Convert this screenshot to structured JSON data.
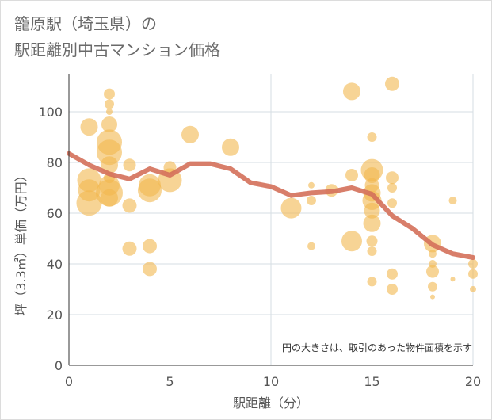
{
  "chart_data": {
    "type": "scatter",
    "title": "籠原駅（埼玉県）の\n駅距離別中古マンション価格",
    "xlabel": "駅距離（分）",
    "ylabel": "坪（3.3㎡）単価（万円）",
    "xlim": [
      0,
      20
    ],
    "ylim": [
      0,
      115
    ],
    "xticks": [
      0,
      5,
      10,
      15,
      20
    ],
    "yticks": [
      0,
      20,
      40,
      60,
      80,
      100
    ],
    "grid": true,
    "note": "円の大きさは、取引のあった物件面積を示す",
    "colors": {
      "bubble": "#f2b84f",
      "line": "#d4705a",
      "grid": "#d6dde3",
      "axis": "#333333"
    },
    "points": [
      {
        "x": 1,
        "y": 94,
        "size": 11
      },
      {
        "x": 1,
        "y": 73,
        "size": 15
      },
      {
        "x": 1,
        "y": 69,
        "size": 14
      },
      {
        "x": 1,
        "y": 64,
        "size": 16
      },
      {
        "x": 2,
        "y": 107,
        "size": 7
      },
      {
        "x": 2,
        "y": 103,
        "size": 6
      },
      {
        "x": 2,
        "y": 100,
        "size": 4
      },
      {
        "x": 2,
        "y": 95,
        "size": 10
      },
      {
        "x": 2,
        "y": 88,
        "size": 16
      },
      {
        "x": 2,
        "y": 84,
        "size": 16
      },
      {
        "x": 2,
        "y": 79,
        "size": 11
      },
      {
        "x": 2,
        "y": 74,
        "size": 7
      },
      {
        "x": 2,
        "y": 71,
        "size": 13
      },
      {
        "x": 2,
        "y": 68,
        "size": 17
      },
      {
        "x": 2,
        "y": 66,
        "size": 11
      },
      {
        "x": 3,
        "y": 79,
        "size": 8
      },
      {
        "x": 3,
        "y": 63,
        "size": 9
      },
      {
        "x": 3,
        "y": 46,
        "size": 9
      },
      {
        "x": 4,
        "y": 71,
        "size": 14
      },
      {
        "x": 4,
        "y": 69,
        "size": 15
      },
      {
        "x": 4,
        "y": 47,
        "size": 9
      },
      {
        "x": 4,
        "y": 38,
        "size": 9
      },
      {
        "x": 5,
        "y": 78,
        "size": 8
      },
      {
        "x": 5,
        "y": 73,
        "size": 15
      },
      {
        "x": 6,
        "y": 91,
        "size": 11
      },
      {
        "x": 8,
        "y": 86,
        "size": 11
      },
      {
        "x": 11,
        "y": 62,
        "size": 13
      },
      {
        "x": 12,
        "y": 71,
        "size": 4
      },
      {
        "x": 12,
        "y": 65,
        "size": 6
      },
      {
        "x": 12,
        "y": 47,
        "size": 5
      },
      {
        "x": 13,
        "y": 69,
        "size": 8
      },
      {
        "x": 14,
        "y": 108,
        "size": 11
      },
      {
        "x": 14,
        "y": 75,
        "size": 8
      },
      {
        "x": 14,
        "y": 49,
        "size": 13
      },
      {
        "x": 15,
        "y": 90,
        "size": 6
      },
      {
        "x": 15,
        "y": 77,
        "size": 14
      },
      {
        "x": 15,
        "y": 75,
        "size": 10
      },
      {
        "x": 15,
        "y": 71,
        "size": 9
      },
      {
        "x": 15,
        "y": 68,
        "size": 11
      },
      {
        "x": 15,
        "y": 65,
        "size": 12
      },
      {
        "x": 15,
        "y": 61,
        "size": 10
      },
      {
        "x": 15,
        "y": 56,
        "size": 11
      },
      {
        "x": 15,
        "y": 49,
        "size": 7
      },
      {
        "x": 15,
        "y": 45,
        "size": 6
      },
      {
        "x": 15,
        "y": 33,
        "size": 6
      },
      {
        "x": 16,
        "y": 111,
        "size": 9
      },
      {
        "x": 16,
        "y": 74,
        "size": 8
      },
      {
        "x": 16,
        "y": 70,
        "size": 6
      },
      {
        "x": 16,
        "y": 64,
        "size": 6
      },
      {
        "x": 16,
        "y": 36,
        "size": 7
      },
      {
        "x": 16,
        "y": 30,
        "size": 7
      },
      {
        "x": 18,
        "y": 48,
        "size": 11
      },
      {
        "x": 18,
        "y": 44,
        "size": 5
      },
      {
        "x": 18,
        "y": 40,
        "size": 5
      },
      {
        "x": 18,
        "y": 37,
        "size": 8
      },
      {
        "x": 18,
        "y": 31,
        "size": 6
      },
      {
        "x": 18,
        "y": 27,
        "size": 3
      },
      {
        "x": 19,
        "y": 65,
        "size": 5
      },
      {
        "x": 19,
        "y": 34,
        "size": 3
      },
      {
        "x": 20,
        "y": 40,
        "size": 6
      },
      {
        "x": 20,
        "y": 36,
        "size": 6
      },
      {
        "x": 20,
        "y": 30,
        "size": 4
      }
    ],
    "trend": {
      "x": [
        0,
        1,
        2,
        3,
        4,
        5,
        6,
        7,
        8,
        9,
        10,
        11,
        12,
        13,
        14,
        15,
        16,
        17,
        18,
        19,
        20
      ],
      "y": [
        83.5,
        79,
        75.5,
        73.5,
        77.5,
        75,
        79.5,
        79.5,
        77.5,
        72,
        70.5,
        67,
        68,
        68.5,
        70,
        67.5,
        59,
        54,
        47.5,
        44,
        42.5
      ]
    }
  }
}
